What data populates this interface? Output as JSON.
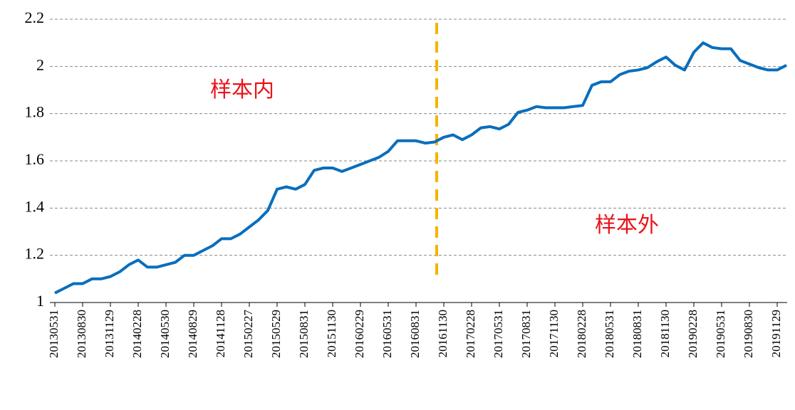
{
  "chart_data": {
    "type": "line",
    "annotations": [
      "样本内",
      "样本外"
    ],
    "categories": [
      "20130531",
      null,
      null,
      "20130830",
      null,
      null,
      "20131129",
      null,
      null,
      "20140228",
      null,
      null,
      "20140530",
      null,
      null,
      "20140829",
      null,
      null,
      "20141128",
      null,
      null,
      "20150227",
      null,
      null,
      "20150529",
      null,
      null,
      "20150831",
      null,
      null,
      "20151130",
      null,
      null,
      "20160229",
      null,
      null,
      "20160531",
      null,
      null,
      "20160831",
      null,
      null,
      "20161130",
      null,
      null,
      "20170228",
      null,
      null,
      "20170531",
      null,
      null,
      "20170831",
      null,
      null,
      "20171130",
      null,
      null,
      "20180228",
      null,
      null,
      "20180531",
      null,
      null,
      "20180831",
      null,
      null,
      "20181130",
      null,
      null,
      "20190228",
      null,
      null,
      "20190531",
      null,
      null,
      "20190830",
      null,
      null,
      "20191129",
      null
    ],
    "series": [
      {
        "color": "#0a6ebd",
        "values": [
          1.04,
          1.06,
          1.08,
          1.08,
          1.1,
          1.1,
          1.11,
          1.13,
          1.16,
          1.18,
          1.15,
          1.15,
          1.16,
          1.17,
          1.2,
          1.2,
          1.22,
          1.24,
          1.27,
          1.27,
          1.29,
          1.32,
          1.35,
          1.39,
          1.48,
          1.49,
          1.48,
          1.5,
          1.56,
          1.57,
          1.57,
          1.555,
          1.57,
          1.585,
          1.6,
          1.615,
          1.64,
          1.685,
          1.685,
          1.685,
          1.675,
          1.68,
          1.7,
          1.71,
          1.69,
          1.71,
          1.74,
          1.745,
          1.735,
          1.755,
          1.805,
          1.815,
          1.83,
          1.825,
          1.825,
          1.825,
          1.83,
          1.835,
          1.92,
          1.935,
          1.935,
          1.965,
          1.98,
          1.985,
          1.995,
          2.02,
          2.04,
          2.005,
          1.985,
          2.06,
          2.1,
          2.08,
          2.075,
          2.075,
          2.025,
          2.01,
          1.995,
          1.985,
          1.985,
          2.005
        ]
      }
    ],
    "ylim": [
      1,
      2.2
    ],
    "yticks": [
      1,
      1.2,
      1.4,
      1.6,
      1.8,
      2,
      2.2
    ],
    "grid": true
  }
}
